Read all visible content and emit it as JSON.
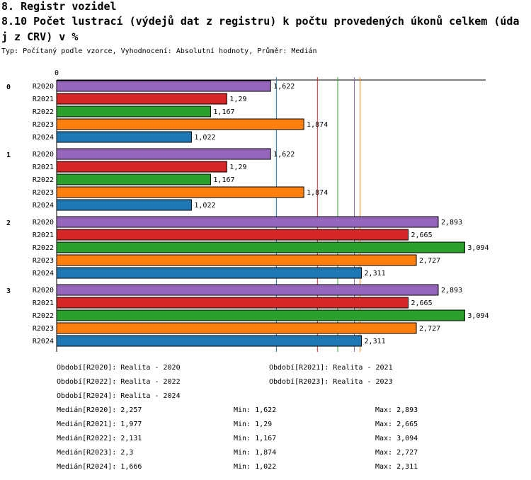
{
  "header": {
    "section_title": "8. Registr vozidel",
    "chart_title_line1": "8.10 Počet lustrací (výdejů dat z registru) k počtu provedených úkonů celkem (úda",
    "chart_title_line2": "j z CRV) v %",
    "subtitle": "Typ: Počítaný podle vzorce, Vyhodnocení: Absolutní hodnoty, Průměr: Medián"
  },
  "chart_data": {
    "type": "bar",
    "orientation": "horizontal",
    "x_tick_labels": [
      "0"
    ],
    "xlim": [
      0,
      3.2
    ],
    "groups": [
      "0",
      "1",
      "2",
      "3"
    ],
    "series": [
      {
        "name": "R2020",
        "color": "#9467bd",
        "values": [
          1.622,
          1.622,
          2.893,
          2.893
        ],
        "labels": [
          "1,622",
          "1,622",
          "2,893",
          "2,893"
        ]
      },
      {
        "name": "R2021",
        "color": "#d62728",
        "values": [
          1.29,
          1.29,
          2.665,
          2.665
        ],
        "labels": [
          "1,29",
          "1,29",
          "2,665",
          "2,665"
        ]
      },
      {
        "name": "R2022",
        "color": "#2ca02c",
        "values": [
          1.167,
          1.167,
          3.094,
          3.094
        ],
        "labels": [
          "1,167",
          "1,167",
          "3,094",
          "3,094"
        ]
      },
      {
        "name": "R2023",
        "color": "#ff7f0e",
        "values": [
          1.874,
          1.874,
          2.727,
          2.727
        ],
        "labels": [
          "1,874",
          "1,874",
          "2,727",
          "2,727"
        ]
      },
      {
        "name": "R2024",
        "color": "#1f77b4",
        "values": [
          1.022,
          1.022,
          2.311,
          2.311
        ],
        "labels": [
          "1,022",
          "1,022",
          "2,311",
          "2,311"
        ]
      }
    ],
    "median_lines": [
      {
        "name": "R2020",
        "value": 2.257,
        "color": "#9467bd"
      },
      {
        "name": "R2021",
        "value": 1.977,
        "color": "#d62728"
      },
      {
        "name": "R2022",
        "value": 2.131,
        "color": "#2ca02c"
      },
      {
        "name": "R2023",
        "value": 2.3,
        "color": "#ff7f0e"
      },
      {
        "name": "R2024",
        "value": 1.666,
        "color": "#1f77b4"
      }
    ]
  },
  "legend": {
    "periods": [
      "Období[R2020]: Realita - 2020",
      "Období[R2021]: Realita - 2021",
      "Období[R2022]: Realita - 2022",
      "Období[R2023]: Realita - 2023",
      "Období[R2024]: Realita - 2024"
    ],
    "stats": [
      {
        "median": "Medián[R2020]: 2,257",
        "min": "Min: 1,622",
        "max": "Max: 2,893"
      },
      {
        "median": "Medián[R2021]: 1,977",
        "min": "Min: 1,29",
        "max": "Max: 2,665"
      },
      {
        "median": "Medián[R2022]: 2,131",
        "min": "Min: 1,167",
        "max": "Max: 3,094"
      },
      {
        "median": "Medián[R2023]: 2,3",
        "min": "Min: 1,874",
        "max": "Max: 2,727"
      },
      {
        "median": "Medián[R2024]: 1,666",
        "min": "Min: 1,022",
        "max": "Max: 2,311"
      }
    ]
  }
}
